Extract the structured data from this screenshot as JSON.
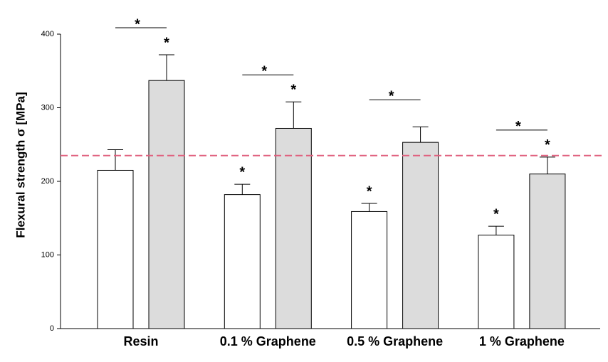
{
  "chart_data": {
    "type": "bar",
    "ylabel": "Flexural strength σ [MPa]",
    "categories": [
      "Resin",
      "0.1 % Graphene",
      "0.5 % Graphene",
      "1 % Graphene"
    ],
    "series": [
      {
        "color": "#ffffff",
        "values": [
          215,
          182,
          159,
          127
        ],
        "errors": [
          28,
          14,
          11,
          12
        ],
        "stars": [
          null,
          "*",
          "*",
          "*"
        ]
      },
      {
        "color": "#dcdcdc",
        "values": [
          337,
          272,
          253,
          210
        ],
        "errors": [
          35,
          36,
          21,
          23
        ],
        "stars": [
          "*",
          "*",
          null,
          "*"
        ]
      }
    ],
    "brackets": [
      "*",
      "*",
      "*",
      "*"
    ],
    "reference_line": {
      "value": 235,
      "color": "#e0607e"
    },
    "ylim": [
      0,
      400
    ],
    "yticks": [
      0,
      100,
      200,
      300,
      400
    ]
  }
}
